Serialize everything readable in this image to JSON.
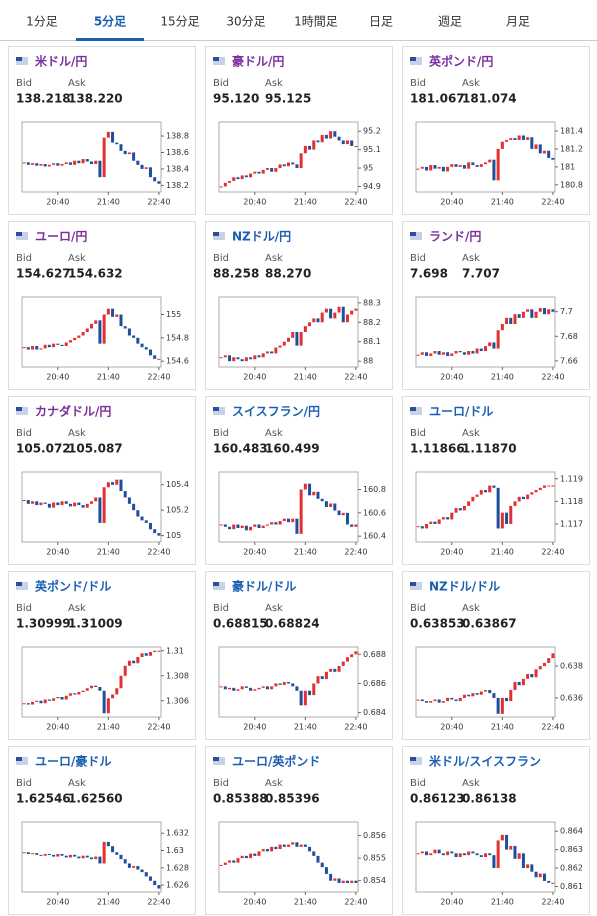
{
  "tabs": [
    "1分足",
    "5分足",
    "15分足",
    "30分足",
    "1時間足",
    "日足",
    "週足",
    "月足"
  ],
  "active_tab": 1,
  "labels": {
    "bid": "Bid",
    "ask": "Ask"
  },
  "xlim": [
    -0.5,
    32.5
  ],
  "xticks": [
    {
      "value": 8,
      "label": "20:40"
    },
    {
      "value": 20,
      "label": "21:40"
    },
    {
      "value": 32,
      "label": "22:40"
    }
  ],
  "charts": [
    {
      "title": "米ドル/円",
      "title_color": "#7b2f9e",
      "bid": "138.218",
      "ask": "138.220",
      "ylim": [
        138.12,
        138.97
      ],
      "yticks": [
        138.8,
        138.6,
        138.4,
        138.2
      ],
      "closes": [
        138.48,
        138.45,
        138.47,
        138.44,
        138.46,
        138.43,
        138.45,
        138.47,
        138.44,
        138.46,
        138.48,
        138.45,
        138.5,
        138.47,
        138.52,
        138.49,
        138.46,
        138.5,
        138.3,
        138.78,
        138.85,
        138.72,
        138.7,
        138.62,
        138.58,
        138.6,
        138.5,
        138.45,
        138.4,
        138.42,
        138.3,
        138.25,
        138.22
      ]
    },
    {
      "title": "豪ドル/円",
      "title_color": "#7b2f9e",
      "bid": "95.120",
      "ask": "95.125",
      "ylim": [
        94.87,
        95.25
      ],
      "yticks": [
        95.2,
        95.1,
        95,
        94.9
      ],
      "closes": [
        94.9,
        94.92,
        94.93,
        94.95,
        94.94,
        94.96,
        94.95,
        94.97,
        94.98,
        94.97,
        94.99,
        95.0,
        94.98,
        95.0,
        95.02,
        95.01,
        95.03,
        95.02,
        95.0,
        95.08,
        95.12,
        95.1,
        95.15,
        95.14,
        95.18,
        95.16,
        95.2,
        95.17,
        95.15,
        95.13,
        95.15,
        95.12,
        95.12
      ]
    },
    {
      "title": "英ポンド/円",
      "title_color": "#7b2f9e",
      "bid": "181.067",
      "ask": "181.074",
      "ylim": [
        180.72,
        181.5
      ],
      "yticks": [
        181.4,
        181.2,
        181,
        180.8
      ],
      "closes": [
        180.98,
        181.0,
        180.96,
        181.02,
        180.98,
        181.0,
        180.95,
        181.0,
        181.03,
        181.0,
        181.02,
        180.98,
        181.05,
        181.02,
        181.0,
        181.03,
        181.05,
        181.08,
        180.85,
        181.2,
        181.28,
        181.3,
        181.32,
        181.3,
        181.35,
        181.3,
        181.33,
        181.2,
        181.25,
        181.15,
        181.18,
        181.1,
        181.08
      ]
    },
    {
      "title": "ユーロ/円",
      "title_color": "#7b2f9e",
      "bid": "154.627",
      "ask": "154.632",
      "ylim": [
        154.55,
        155.15
      ],
      "yticks": [
        155,
        154.8,
        154.6
      ],
      "closes": [
        154.72,
        154.7,
        154.73,
        154.7,
        154.71,
        154.74,
        154.72,
        154.75,
        154.74,
        154.73,
        154.76,
        154.78,
        154.8,
        154.82,
        154.85,
        154.88,
        154.92,
        154.95,
        154.75,
        155.0,
        155.05,
        154.98,
        155.0,
        154.9,
        154.88,
        154.82,
        154.8,
        154.75,
        154.72,
        154.7,
        154.65,
        154.62,
        154.62
      ]
    },
    {
      "title": "NZドル/円",
      "title_color": "#1a5fb4",
      "bid": "88.258",
      "ask": "88.270",
      "ylim": [
        87.97,
        88.33
      ],
      "yticks": [
        88.3,
        88.2,
        88.1,
        88
      ],
      "closes": [
        88.02,
        88.03,
        88.0,
        88.02,
        88.01,
        88.0,
        88.02,
        88.01,
        88.03,
        88.02,
        88.04,
        88.05,
        88.04,
        88.07,
        88.08,
        88.1,
        88.12,
        88.15,
        88.08,
        88.15,
        88.18,
        88.2,
        88.22,
        88.2,
        88.25,
        88.27,
        88.22,
        88.25,
        88.28,
        88.2,
        88.24,
        88.26,
        88.27
      ]
    },
    {
      "title": "ランド/円",
      "title_color": "#7b2f9e",
      "bid": "7.698",
      "ask": "7.707",
      "ylim": [
        7.655,
        7.712
      ],
      "yticks": [
        7.7,
        7.68,
        7.66
      ],
      "closes": [
        7.665,
        7.667,
        7.664,
        7.666,
        7.668,
        7.665,
        7.667,
        7.664,
        7.666,
        7.668,
        7.667,
        7.665,
        7.668,
        7.666,
        7.67,
        7.668,
        7.672,
        7.675,
        7.67,
        7.685,
        7.69,
        7.695,
        7.69,
        7.698,
        7.695,
        7.7,
        7.702,
        7.695,
        7.7,
        7.703,
        7.698,
        7.702,
        7.7
      ]
    },
    {
      "title": "カナダドル/円",
      "title_color": "#7b2f9e",
      "bid": "105.072",
      "ask": "105.087",
      "ylim": [
        104.95,
        105.5
      ],
      "yticks": [
        105.4,
        105.2,
        105
      ],
      "closes": [
        105.28,
        105.25,
        105.27,
        105.24,
        105.26,
        105.25,
        105.22,
        105.26,
        105.24,
        105.27,
        105.25,
        105.23,
        105.26,
        105.24,
        105.22,
        105.25,
        105.27,
        105.3,
        105.1,
        105.38,
        105.42,
        105.4,
        105.44,
        105.35,
        105.3,
        105.25,
        105.2,
        105.15,
        105.12,
        105.1,
        105.05,
        105.02,
        105.0
      ]
    },
    {
      "title": "スイスフラン/円",
      "title_color": "#1a5fb4",
      "bid": "160.483",
      "ask": "160.499",
      "ylim": [
        160.35,
        160.95
      ],
      "yticks": [
        160.8,
        160.6,
        160.4
      ],
      "closes": [
        160.5,
        160.48,
        160.46,
        160.5,
        160.47,
        160.49,
        160.45,
        160.48,
        160.5,
        160.47,
        160.49,
        160.5,
        160.52,
        160.5,
        160.53,
        160.55,
        160.52,
        160.55,
        160.42,
        160.8,
        160.85,
        160.75,
        160.78,
        160.72,
        160.7,
        160.65,
        160.68,
        160.62,
        160.58,
        160.6,
        160.5,
        160.48,
        160.5
      ]
    },
    {
      "title": "ユーロ/ドル",
      "title_color": "#1a5fb4",
      "bid": "1.11866",
      "ask": "1.11870",
      "ylim": [
        1.1162,
        1.1193
      ],
      "yticks": [
        1.119,
        1.118,
        1.117
      ],
      "closes": [
        1.1169,
        1.1168,
        1.117,
        1.1171,
        1.117,
        1.1172,
        1.1173,
        1.1172,
        1.1175,
        1.1177,
        1.1176,
        1.1178,
        1.118,
        1.1182,
        1.1183,
        1.1185,
        1.1184,
        1.1187,
        1.1186,
        1.1168,
        1.1175,
        1.117,
        1.1178,
        1.118,
        1.1182,
        1.1181,
        1.1183,
        1.1184,
        1.1185,
        1.1186,
        1.1187,
        1.1187,
        1.1187
      ]
    },
    {
      "title": "英ポンド/ドル",
      "title_color": "#1a5fb4",
      "bid": "1.30999",
      "ask": "1.31009",
      "ylim": [
        1.3047,
        1.3103
      ],
      "yticks": [
        1.31,
        1.308,
        1.306
      ],
      "closes": [
        1.3058,
        1.3057,
        1.3059,
        1.306,
        1.3058,
        1.3061,
        1.306,
        1.3062,
        1.3063,
        1.3061,
        1.3064,
        1.3066,
        1.3065,
        1.3067,
        1.3068,
        1.307,
        1.3072,
        1.3071,
        1.3068,
        1.305,
        1.3062,
        1.3065,
        1.307,
        1.308,
        1.3088,
        1.3092,
        1.309,
        1.3095,
        1.3098,
        1.3096,
        1.3099,
        1.31,
        1.31
      ]
    },
    {
      "title": "豪ドル/ドル",
      "title_color": "#1a5fb4",
      "bid": "0.68815",
      "ask": "0.68824",
      "ylim": [
        0.6837,
        0.6885
      ],
      "yticks": [
        0.688,
        0.686,
        0.684
      ],
      "closes": [
        0.6858,
        0.6856,
        0.6857,
        0.6855,
        0.6856,
        0.6858,
        0.6857,
        0.6855,
        0.6856,
        0.6857,
        0.6858,
        0.6856,
        0.6858,
        0.686,
        0.6859,
        0.6861,
        0.686,
        0.6858,
        0.6855,
        0.6845,
        0.6855,
        0.6852,
        0.686,
        0.6865,
        0.6863,
        0.6868,
        0.687,
        0.6868,
        0.6872,
        0.6875,
        0.6878,
        0.688,
        0.6882
      ]
    },
    {
      "title": "NZドル/ドル",
      "title_color": "#1a5fb4",
      "bid": "0.63853",
      "ask": "0.63867",
      "ylim": [
        0.6348,
        0.6392
      ],
      "yticks": [
        0.638,
        0.636
      ],
      "closes": [
        0.6359,
        0.6358,
        0.6357,
        0.6358,
        0.6359,
        0.6357,
        0.6358,
        0.636,
        0.6359,
        0.6358,
        0.636,
        0.6362,
        0.6361,
        0.6363,
        0.6362,
        0.6364,
        0.6365,
        0.6363,
        0.636,
        0.635,
        0.636,
        0.6358,
        0.6365,
        0.637,
        0.6368,
        0.6372,
        0.6375,
        0.6373,
        0.6378,
        0.638,
        0.6382,
        0.6385,
        0.6388
      ]
    },
    {
      "title": "ユーロ/豪ドル",
      "title_color": "#1a5fb4",
      "bid": "1.62546",
      "ask": "1.62560",
      "ylim": [
        1.6252,
        1.6333
      ],
      "yticks": [
        1.632,
        1.63,
        1.628,
        1.626
      ],
      "closes": [
        1.6298,
        1.6296,
        1.6297,
        1.6295,
        1.6294,
        1.6296,
        1.6295,
        1.6293,
        1.6296,
        1.6294,
        1.6292,
        1.6295,
        1.6293,
        1.6291,
        1.6294,
        1.6292,
        1.629,
        1.6293,
        1.6285,
        1.631,
        1.6305,
        1.6298,
        1.6295,
        1.629,
        1.6285,
        1.628,
        1.6282,
        1.6278,
        1.6275,
        1.627,
        1.6265,
        1.626,
        1.6256
      ]
    },
    {
      "title": "ユーロ/英ポンド",
      "title_color": "#1a5fb4",
      "bid": "0.85388",
      "ask": "0.85396",
      "ylim": [
        0.8535,
        0.8566
      ],
      "yticks": [
        0.856,
        0.855,
        0.854
      ],
      "closes": [
        0.8547,
        0.8548,
        0.8549,
        0.8548,
        0.855,
        0.8551,
        0.855,
        0.8552,
        0.8551,
        0.8553,
        0.8554,
        0.8553,
        0.8555,
        0.8554,
        0.8556,
        0.8555,
        0.8556,
        0.8557,
        0.8555,
        0.8556,
        0.8555,
        0.8553,
        0.8551,
        0.8548,
        0.8546,
        0.8543,
        0.854,
        0.8541,
        0.8539,
        0.854,
        0.8539,
        0.854,
        0.8539
      ]
    },
    {
      "title": "米ドル/スイスフラン",
      "title_color": "#1a5fb4",
      "bid": "0.86123",
      "ask": "0.86138",
      "ylim": [
        0.8607,
        0.8645
      ],
      "yticks": [
        0.864,
        0.863,
        0.862,
        0.861
      ],
      "closes": [
        0.8628,
        0.8629,
        0.8627,
        0.8628,
        0.863,
        0.8628,
        0.8627,
        0.8629,
        0.8628,
        0.8626,
        0.8628,
        0.8627,
        0.8629,
        0.8628,
        0.8627,
        0.8626,
        0.8628,
        0.8627,
        0.862,
        0.8635,
        0.8638,
        0.863,
        0.8632,
        0.8625,
        0.8628,
        0.862,
        0.8622,
        0.8618,
        0.8615,
        0.8617,
        0.8613,
        0.8612,
        0.8612
      ]
    }
  ]
}
